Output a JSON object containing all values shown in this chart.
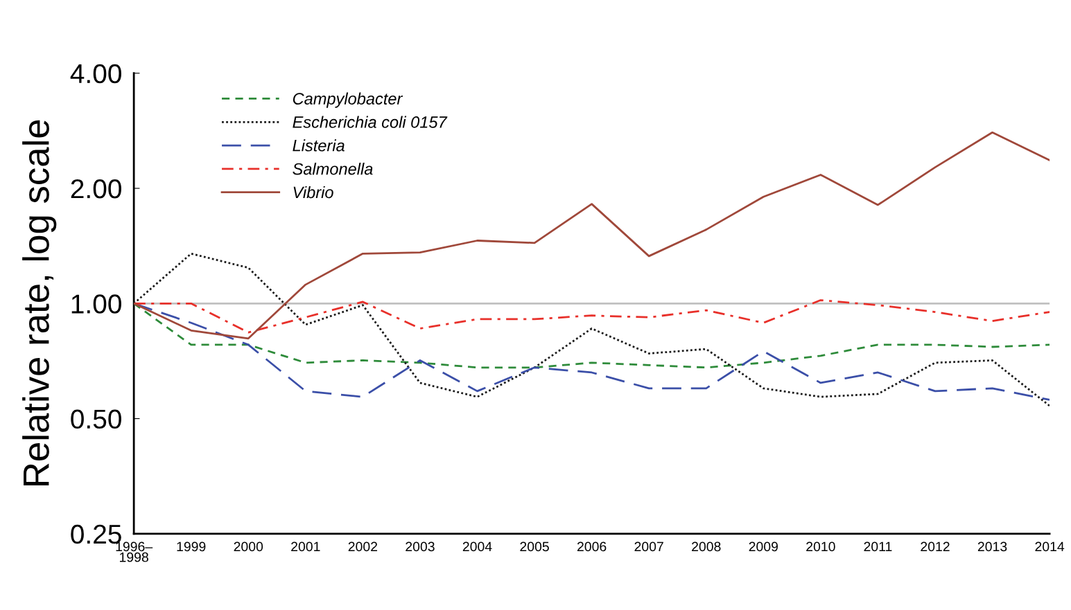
{
  "chart_data": {
    "type": "line",
    "ylabel": "Relative rate, log scale",
    "log": "y",
    "ylim": [
      0.25,
      4
    ],
    "yticks": [
      {
        "value": 0.25,
        "label": "0.25"
      },
      {
        "value": 0.5,
        "label": "0.50"
      },
      {
        "value": 1,
        "label": "1.00"
      },
      {
        "value": 2,
        "label": "2.00"
      },
      {
        "value": 4,
        "label": "4.00"
      }
    ],
    "categories": [
      "1996–\n1998",
      "1999",
      "2000",
      "2001",
      "2002",
      "2003",
      "2004",
      "2005",
      "2006",
      "2007",
      "2008",
      "2009",
      "2010",
      "2011",
      "2012",
      "2013",
      "2014"
    ],
    "grid": false,
    "legend": "top left",
    "marker": "none",
    "ref_lines": [
      {
        "axis": "y",
        "value": 1,
        "color": "#c0c0c0"
      }
    ],
    "series": [
      {
        "name": "Campylobacter",
        "color": "#2e8b3a",
        "line_style": "dashed",
        "values": [
          1,
          0.78,
          0.78,
          0.7,
          0.71,
          0.7,
          0.68,
          0.68,
          0.7,
          0.69,
          0.68,
          0.7,
          0.73,
          0.78,
          0.78,
          0.77,
          0.78
        ]
      },
      {
        "name": "Escherichia coli 0157",
        "color": "#1a1a1a",
        "line_style": "dotted",
        "values": [
          1,
          1.35,
          1.24,
          0.88,
          0.99,
          0.62,
          0.57,
          0.68,
          0.86,
          0.74,
          0.76,
          0.6,
          0.57,
          0.58,
          0.7,
          0.71,
          0.54
        ]
      },
      {
        "name": "Listeria",
        "color": "#3b4fa8",
        "line_style": "longdashed",
        "values": [
          1,
          0.89,
          0.78,
          0.59,
          0.57,
          0.71,
          0.59,
          0.68,
          0.66,
          0.6,
          0.6,
          0.75,
          0.62,
          0.66,
          0.59,
          0.6,
          0.56
        ]
      },
      {
        "name": "Salmonella",
        "color": "#e8302a",
        "line_style": "dashdot",
        "values": [
          1,
          1.0,
          0.84,
          0.92,
          1.01,
          0.86,
          0.91,
          0.91,
          0.93,
          0.92,
          0.96,
          0.89,
          1.02,
          0.99,
          0.95,
          0.9,
          0.95
        ]
      },
      {
        "name": "Vibrio",
        "color": "#a0483a",
        "line_style": "solid",
        "values": [
          1,
          0.85,
          0.81,
          1.12,
          1.35,
          1.36,
          1.46,
          1.44,
          1.82,
          1.33,
          1.56,
          1.9,
          2.17,
          1.81,
          2.27,
          2.8,
          2.37
        ]
      }
    ]
  }
}
